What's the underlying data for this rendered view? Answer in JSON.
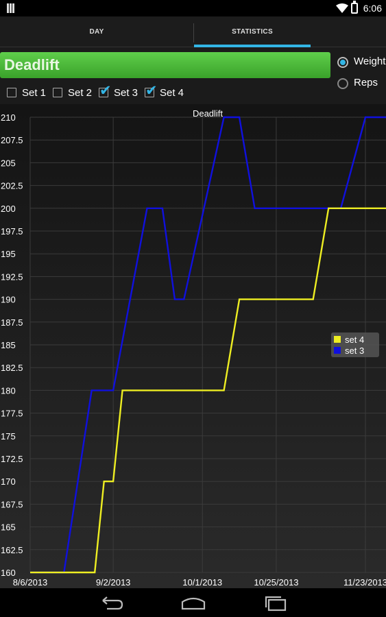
{
  "status": {
    "time": "6:06",
    "icons": [
      "notification-icon",
      "wifi-icon",
      "battery-icon"
    ]
  },
  "tabs": [
    {
      "label": "DAY",
      "selected": false
    },
    {
      "label": "STATISTICS",
      "selected": true
    }
  ],
  "exercise": {
    "name": "Deadlift",
    "color": "#4cbb3a"
  },
  "mode": {
    "options": [
      "Weight",
      "Reps"
    ],
    "selected": "Weight"
  },
  "sets": [
    {
      "label": "Set 1",
      "checked": false
    },
    {
      "label": "Set 2",
      "checked": false
    },
    {
      "label": "Set 3",
      "checked": true
    },
    {
      "label": "Set 4",
      "checked": true
    }
  ],
  "colors": {
    "accent": "#33b5e5",
    "set3": "#1010dd",
    "set4": "#eeee22"
  },
  "chart_data": {
    "type": "line",
    "title": "Deadlift",
    "ylim": [
      160,
      210
    ],
    "y_ticks": [
      "160",
      "162.5",
      "165",
      "167.5",
      "170",
      "172.5",
      "175",
      "177.5",
      "180",
      "182.5",
      "185",
      "187.5",
      "190",
      "192.5",
      "195",
      "197.5",
      "200",
      "202.5",
      "205",
      "207.5",
      "210"
    ],
    "x_tick_labels": [
      "8/6/2013",
      "9/2/2013",
      "10/1/2013",
      "10/25/2013",
      "11/23/2013"
    ],
    "series": [
      {
        "name": "set 3",
        "color": "#1010dd",
        "x": [
          "8/6/2013",
          "8/17/2013",
          "8/26/2013",
          "8/30/2013",
          "9/2/2013",
          "9/13/2013",
          "9/18/2013",
          "9/22/2013",
          "9/25/2013",
          "10/8/2013",
          "10/13/2013",
          "10/18/2013",
          "11/15/2013",
          "11/23/2013"
        ],
        "values": [
          160,
          160,
          180,
          180,
          180,
          200,
          200,
          190,
          190,
          210,
          210,
          200,
          200,
          210
        ]
      },
      {
        "name": "set 4",
        "color": "#eeee22",
        "x": [
          "8/6/2013",
          "8/27/2013",
          "8/30/2013",
          "9/2/2013",
          "9/5/2013",
          "9/15/2013",
          "10/8/2013",
          "10/13/2013",
          "11/6/2013",
          "11/11/2013",
          "11/23/2013"
        ],
        "values": [
          160,
          160,
          170,
          170,
          180,
          180,
          180,
          190,
          190,
          200,
          200
        ]
      }
    ],
    "legend": {
      "placement": "right",
      "entries": [
        "set 4",
        "set 3"
      ]
    },
    "grid": true
  }
}
